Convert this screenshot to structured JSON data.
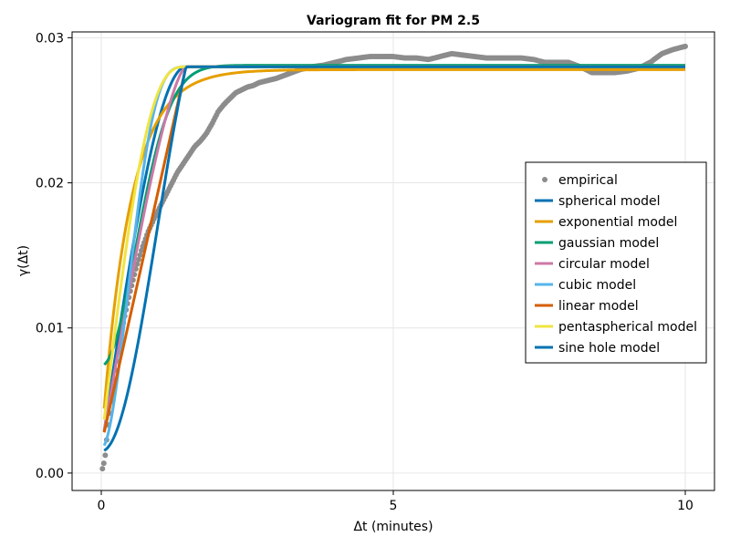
{
  "chart_data": {
    "type": "line",
    "title": "Variogram fit for PM 2.5",
    "xlabel": "Δt (minutes)",
    "ylabel": "γ(Δt)",
    "xlim": [
      -0.5,
      10.5
    ],
    "ylim": [
      -0.0012,
      0.0304
    ],
    "x_ticks": [
      0,
      5,
      10
    ],
    "x_tick_labels": [
      "0",
      "5",
      "10"
    ],
    "y_ticks": [
      0.0,
      0.01,
      0.02,
      0.03
    ],
    "y_tick_labels": [
      "0.00",
      "0.01",
      "0.02",
      "0.03"
    ],
    "grid": true,
    "legend_position": "right",
    "empirical": {
      "name": "empirical",
      "color": "#8c8c8c",
      "x": [
        0.02,
        0.04,
        0.06,
        0.08,
        0.1,
        0.15,
        0.2,
        0.3,
        0.4,
        0.5,
        0.6,
        0.7,
        0.8,
        0.9,
        1.0,
        1.1,
        1.2,
        1.3,
        1.4,
        1.5,
        1.6,
        1.7,
        1.8,
        1.9,
        2.0,
        2.1,
        2.2,
        2.3,
        2.4,
        2.5,
        2.6,
        2.7,
        2.8,
        2.9,
        3.0,
        3.2,
        3.4,
        3.6,
        3.8,
        4.0,
        4.2,
        4.4,
        4.6,
        4.8,
        5.0,
        5.2,
        5.4,
        5.6,
        5.8,
        6.0,
        6.2,
        6.4,
        6.6,
        6.8,
        7.0,
        7.2,
        7.4,
        7.6,
        7.8,
        8.0,
        8.2,
        8.4,
        8.6,
        8.8,
        9.0,
        9.2,
        9.4,
        9.6,
        9.8,
        10.0
      ],
      "y": [
        0.0003,
        0.0006,
        0.001,
        0.0016,
        0.0028,
        0.0045,
        0.0062,
        0.0088,
        0.0108,
        0.0126,
        0.0142,
        0.0155,
        0.0166,
        0.0175,
        0.0183,
        0.0191,
        0.0199,
        0.0207,
        0.0213,
        0.0219,
        0.0225,
        0.0229,
        0.0234,
        0.0241,
        0.0249,
        0.0254,
        0.0258,
        0.0262,
        0.0264,
        0.0266,
        0.0267,
        0.0269,
        0.027,
        0.0271,
        0.0272,
        0.0275,
        0.0278,
        0.028,
        0.0281,
        0.0283,
        0.0285,
        0.0286,
        0.0287,
        0.0287,
        0.0287,
        0.0286,
        0.0286,
        0.0285,
        0.0287,
        0.0289,
        0.0288,
        0.0287,
        0.0286,
        0.0286,
        0.0286,
        0.0286,
        0.0285,
        0.0283,
        0.0283,
        0.0283,
        0.028,
        0.0276,
        0.0276,
        0.0276,
        0.0277,
        0.0279,
        0.0283,
        0.0289,
        0.0292,
        0.0294
      ]
    },
    "series": [
      {
        "name": "spherical model",
        "model": "spherical",
        "color": "#0072b2",
        "sill": 0.028,
        "range": 1.45,
        "nugget": 0.0015
      },
      {
        "name": "exponential model",
        "model": "exponential",
        "color": "#e69f00",
        "sill": 0.0278,
        "range": 1.45,
        "nugget": 0.0019
      },
      {
        "name": "gaussian model",
        "model": "gaussian",
        "color": "#009e73",
        "sill": 0.0281,
        "range": 1.45,
        "nugget": 0.0074
      },
      {
        "name": "circular model",
        "model": "circular",
        "color": "#cc79a7",
        "sill": 0.028,
        "range": 1.45,
        "nugget": 0.0018
      },
      {
        "name": "cubic model",
        "model": "cubic",
        "color": "#56b4e9",
        "sill": 0.028,
        "range": 1.5,
        "nugget": 0.0017
      },
      {
        "name": "linear model",
        "model": "linear",
        "color": "#d55e00",
        "sill": 0.028,
        "range": 1.45,
        "nugget": 0.0019
      },
      {
        "name": "pentaspherical model",
        "model": "pentaspherical",
        "color": "#f0e442",
        "sill": 0.028,
        "range": 1.45,
        "nugget": 0.002
      },
      {
        "name": "sine hole model",
        "model": "sinehole",
        "color": "#0072b2",
        "sill": 0.028,
        "range": 1.45,
        "nugget": 0.0015
      }
    ]
  }
}
